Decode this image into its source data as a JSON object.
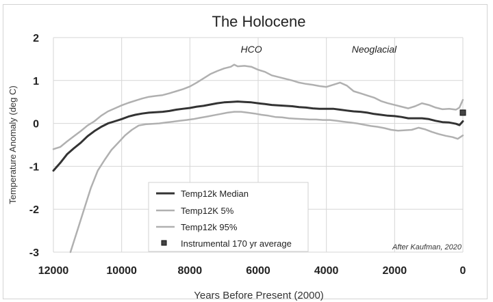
{
  "chart_data": {
    "type": "line",
    "title": "The Holocene",
    "xlabel": "Years Before Present (2000)",
    "ylabel": "Temperature Anomaly (deg C)",
    "xlim": [
      12000,
      0
    ],
    "ylim": [
      -3,
      2
    ],
    "x_ticks": [
      12000,
      10000,
      8000,
      6000,
      4000,
      2000,
      0
    ],
    "y_ticks": [
      2,
      1,
      0,
      -1,
      -2,
      -3
    ],
    "grid": true,
    "legend_position": "bottom-left",
    "series": [
      {
        "name": "Temp12k Median",
        "color": "#333333",
        "width": 3,
        "points": [
          [
            12000,
            -1.1
          ],
          [
            11800,
            -0.92
          ],
          [
            11600,
            -0.72
          ],
          [
            11400,
            -0.58
          ],
          [
            11200,
            -0.45
          ],
          [
            11000,
            -0.3
          ],
          [
            10800,
            -0.18
          ],
          [
            10600,
            -0.08
          ],
          [
            10400,
            0.0
          ],
          [
            10200,
            0.05
          ],
          [
            10000,
            0.1
          ],
          [
            9800,
            0.16
          ],
          [
            9600,
            0.2
          ],
          [
            9400,
            0.23
          ],
          [
            9200,
            0.25
          ],
          [
            9000,
            0.26
          ],
          [
            8800,
            0.27
          ],
          [
            8600,
            0.29
          ],
          [
            8400,
            0.32
          ],
          [
            8200,
            0.34
          ],
          [
            8000,
            0.36
          ],
          [
            7800,
            0.39
          ],
          [
            7600,
            0.41
          ],
          [
            7400,
            0.44
          ],
          [
            7200,
            0.47
          ],
          [
            7000,
            0.49
          ],
          [
            6800,
            0.5
          ],
          [
            6600,
            0.51
          ],
          [
            6400,
            0.5
          ],
          [
            6200,
            0.49
          ],
          [
            6000,
            0.47
          ],
          [
            5800,
            0.45
          ],
          [
            5600,
            0.43
          ],
          [
            5400,
            0.42
          ],
          [
            5200,
            0.41
          ],
          [
            5000,
            0.4
          ],
          [
            4800,
            0.38
          ],
          [
            4600,
            0.37
          ],
          [
            4400,
            0.35
          ],
          [
            4200,
            0.34
          ],
          [
            4000,
            0.34
          ],
          [
            3800,
            0.34
          ],
          [
            3600,
            0.32
          ],
          [
            3400,
            0.3
          ],
          [
            3200,
            0.28
          ],
          [
            3000,
            0.27
          ],
          [
            2800,
            0.25
          ],
          [
            2600,
            0.22
          ],
          [
            2400,
            0.2
          ],
          [
            2200,
            0.18
          ],
          [
            2000,
            0.17
          ],
          [
            1800,
            0.15
          ],
          [
            1600,
            0.12
          ],
          [
            1400,
            0.12
          ],
          [
            1200,
            0.12
          ],
          [
            1000,
            0.1
          ],
          [
            800,
            0.06
          ],
          [
            600,
            0.03
          ],
          [
            400,
            0.02
          ],
          [
            200,
            -0.01
          ],
          [
            100,
            -0.04
          ],
          [
            0,
            0.05
          ]
        ]
      },
      {
        "name": "Temp12K 5%",
        "color": "#b0b0b0",
        "width": 2.5,
        "points": [
          [
            11500,
            -3.0
          ],
          [
            11300,
            -2.5
          ],
          [
            11100,
            -2.0
          ],
          [
            10900,
            -1.5
          ],
          [
            10700,
            -1.1
          ],
          [
            10500,
            -0.85
          ],
          [
            10300,
            -0.62
          ],
          [
            10100,
            -0.45
          ],
          [
            9900,
            -0.28
          ],
          [
            9700,
            -0.15
          ],
          [
            9500,
            -0.05
          ],
          [
            9300,
            -0.02
          ],
          [
            9100,
            -0.01
          ],
          [
            8900,
            0.0
          ],
          [
            8700,
            0.02
          ],
          [
            8500,
            0.04
          ],
          [
            8300,
            0.06
          ],
          [
            8100,
            0.08
          ],
          [
            7900,
            0.1
          ],
          [
            7700,
            0.13
          ],
          [
            7500,
            0.16
          ],
          [
            7300,
            0.19
          ],
          [
            7100,
            0.22
          ],
          [
            6900,
            0.25
          ],
          [
            6700,
            0.27
          ],
          [
            6500,
            0.27
          ],
          [
            6300,
            0.25
          ],
          [
            6100,
            0.23
          ],
          [
            5900,
            0.2
          ],
          [
            5700,
            0.18
          ],
          [
            5500,
            0.15
          ],
          [
            5300,
            0.14
          ],
          [
            5100,
            0.12
          ],
          [
            4900,
            0.11
          ],
          [
            4700,
            0.1
          ],
          [
            4500,
            0.09
          ],
          [
            4300,
            0.09
          ],
          [
            4100,
            0.08
          ],
          [
            3900,
            0.08
          ],
          [
            3700,
            0.06
          ],
          [
            3500,
            0.04
          ],
          [
            3300,
            0.02
          ],
          [
            3100,
            0.0
          ],
          [
            2900,
            -0.03
          ],
          [
            2700,
            -0.06
          ],
          [
            2500,
            -0.08
          ],
          [
            2300,
            -0.11
          ],
          [
            2100,
            -0.15
          ],
          [
            1900,
            -0.17
          ],
          [
            1700,
            -0.16
          ],
          [
            1500,
            -0.15
          ],
          [
            1300,
            -0.1
          ],
          [
            1100,
            -0.14
          ],
          [
            900,
            -0.2
          ],
          [
            700,
            -0.25
          ],
          [
            500,
            -0.29
          ],
          [
            300,
            -0.32
          ],
          [
            150,
            -0.36
          ],
          [
            0,
            -0.28
          ]
        ]
      },
      {
        "name": "Temp12k 95%",
        "color": "#b0b0b0",
        "width": 2.5,
        "points": [
          [
            12000,
            -0.6
          ],
          [
            11800,
            -0.55
          ],
          [
            11600,
            -0.42
          ],
          [
            11400,
            -0.3
          ],
          [
            11200,
            -0.18
          ],
          [
            11000,
            -0.05
          ],
          [
            10800,
            0.05
          ],
          [
            10600,
            0.18
          ],
          [
            10400,
            0.28
          ],
          [
            10200,
            0.35
          ],
          [
            10000,
            0.42
          ],
          [
            9800,
            0.48
          ],
          [
            9600,
            0.53
          ],
          [
            9400,
            0.58
          ],
          [
            9200,
            0.62
          ],
          [
            9000,
            0.64
          ],
          [
            8800,
            0.66
          ],
          [
            8600,
            0.7
          ],
          [
            8400,
            0.75
          ],
          [
            8200,
            0.8
          ],
          [
            8000,
            0.86
          ],
          [
            7800,
            0.95
          ],
          [
            7600,
            1.05
          ],
          [
            7400,
            1.15
          ],
          [
            7200,
            1.22
          ],
          [
            7000,
            1.28
          ],
          [
            6800,
            1.32
          ],
          [
            6700,
            1.37
          ],
          [
            6600,
            1.33
          ],
          [
            6400,
            1.34
          ],
          [
            6200,
            1.32
          ],
          [
            6000,
            1.25
          ],
          [
            5800,
            1.2
          ],
          [
            5600,
            1.12
          ],
          [
            5400,
            1.08
          ],
          [
            5200,
            1.04
          ],
          [
            5000,
            1.0
          ],
          [
            4800,
            0.95
          ],
          [
            4600,
            0.92
          ],
          [
            4400,
            0.9
          ],
          [
            4200,
            0.87
          ],
          [
            4000,
            0.85
          ],
          [
            3800,
            0.9
          ],
          [
            3600,
            0.95
          ],
          [
            3400,
            0.88
          ],
          [
            3200,
            0.75
          ],
          [
            3000,
            0.7
          ],
          [
            2800,
            0.65
          ],
          [
            2600,
            0.6
          ],
          [
            2400,
            0.52
          ],
          [
            2200,
            0.47
          ],
          [
            2000,
            0.43
          ],
          [
            1800,
            0.39
          ],
          [
            1600,
            0.35
          ],
          [
            1400,
            0.4
          ],
          [
            1200,
            0.47
          ],
          [
            1000,
            0.43
          ],
          [
            800,
            0.37
          ],
          [
            600,
            0.33
          ],
          [
            400,
            0.34
          ],
          [
            200,
            0.32
          ],
          [
            100,
            0.37
          ],
          [
            0,
            0.55
          ]
        ]
      },
      {
        "name": "Instrumental 170 yr average",
        "color": "#444444",
        "marker": "square",
        "points": [
          [
            0,
            0.25
          ]
        ]
      }
    ],
    "annotations": [
      {
        "text": "HCO",
        "x": 6200,
        "y": 1.65
      },
      {
        "text": "Neoglacial",
        "x": 2600,
        "y": 1.65
      }
    ],
    "credit": "After Kaufman, 2020"
  }
}
